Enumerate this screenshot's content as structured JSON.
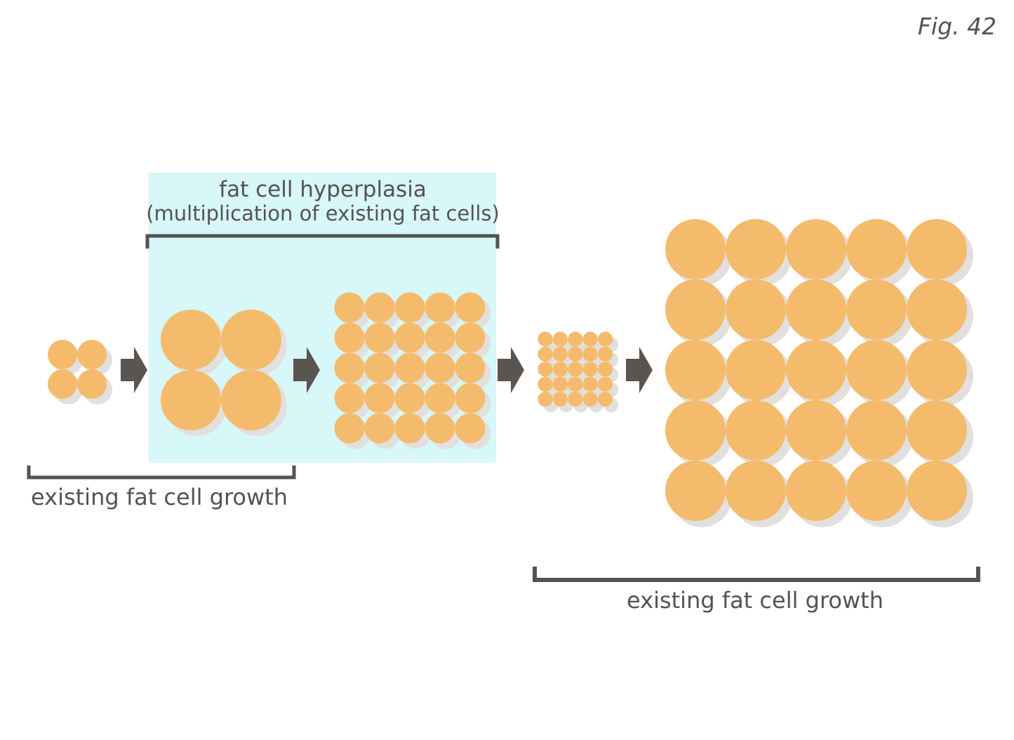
{
  "figure_label": "Fig. 42",
  "hyperplasia": {
    "title": "fat cell hyperplasia",
    "subtitle": "(multiplication of existing fat cells)"
  },
  "growth_left_label": "existing fat cell growth",
  "growth_right_label": "existing fat cell growth",
  "stages": [
    {
      "rows": 2,
      "cols": 2,
      "size": "small"
    },
    {
      "rows": 2,
      "cols": 2,
      "size": "large"
    },
    {
      "rows": 5,
      "cols": 5,
      "size": "small"
    },
    {
      "rows": 5,
      "cols": 5,
      "size": "tiny"
    },
    {
      "rows": 5,
      "cols": 5,
      "size": "large"
    }
  ],
  "colors": {
    "cell": "#f4bb6c",
    "shadow": "#e2e0de",
    "highlight_box": "#d7f7f9",
    "arrow": "#5a5551",
    "text": "#555250"
  }
}
